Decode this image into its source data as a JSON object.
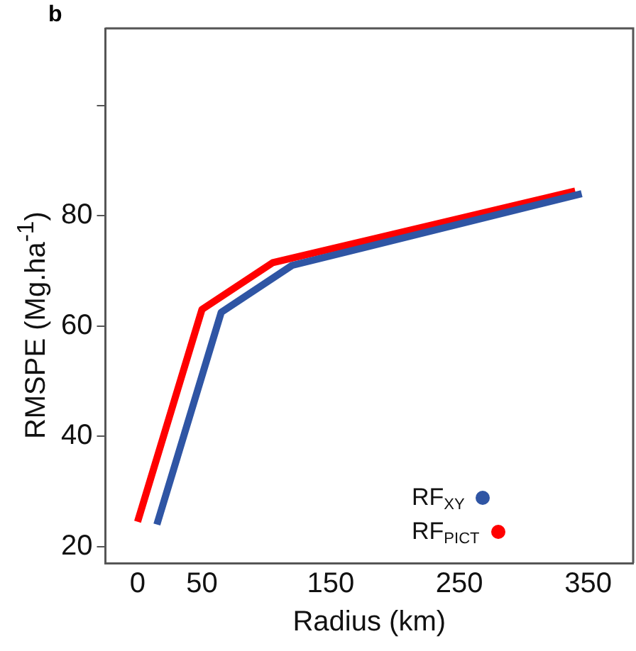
{
  "chart_data": {
    "type": "line",
    "xlabel": "Radius (km)",
    "ylabel": "RMSPE (Mg.ha$^{-1}$)",
    "annotations": [
      "b"
    ],
    "xlim": [
      -25,
      385
    ],
    "xticks": [
      0,
      50,
      150,
      250,
      350
    ],
    "ylim": [
      17,
      114
    ],
    "yticks": [
      20,
      40,
      60,
      80,
      {
        "value": 100,
        "label": null
      }
    ],
    "grid": false,
    "legend": "bottom right",
    "marker": "none",
    "line_style": "solid",
    "series": [
      {
        "name": "RF$_{XY}$",
        "color": "#2f55a4",
        "x": [
          15,
          65,
          120,
          345
        ],
        "values": [
          24,
          62.5,
          71,
          84
        ]
      },
      {
        "name": "RF$_{PICT}$",
        "color": "#ff0000",
        "x": [
          0,
          50,
          105,
          340
        ],
        "values": [
          24.5,
          63,
          71.5,
          84.5
        ]
      }
    ]
  }
}
